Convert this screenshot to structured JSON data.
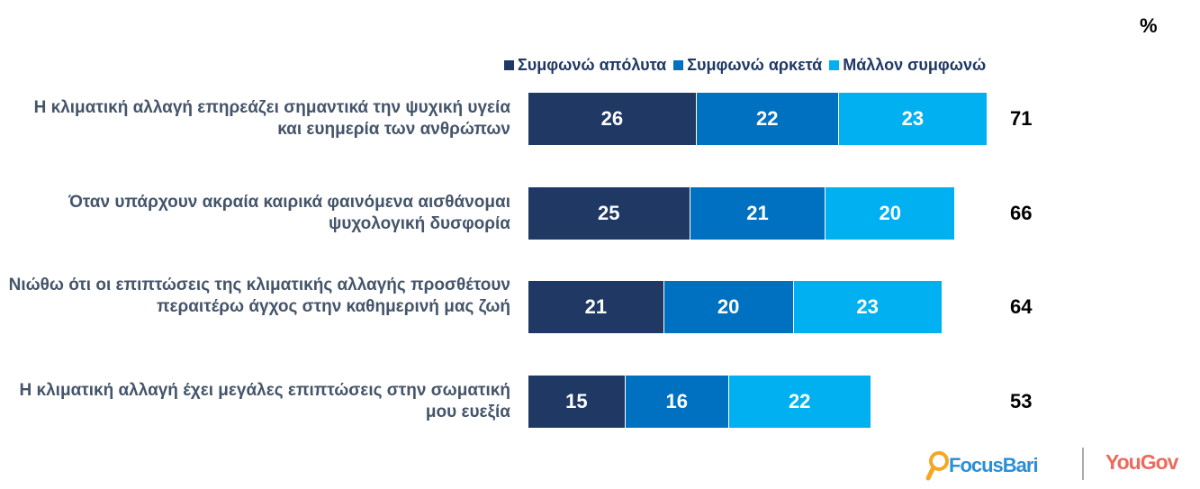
{
  "chart_data": {
    "type": "bar",
    "orientation": "horizontal",
    "stacked": true,
    "unit_label": "%",
    "categories": [
      "Η κλιματική αλλαγή επηρεάζει σημαντικά την ψυχική υγεία και ευημερία των ανθρώπων",
      "Όταν υπάρχουν ακραία καιρικά φαινόμενα αισθάνομαι ψυχολογική δυσφορία",
      "Νιώθω ότι οι επιπτώσεις της κλιματικής αλλαγής προσθέτουν περαιτέρω άγχος στην καθημερινή μας ζωή",
      "Η κλιματική αλλαγή έχει μεγάλες επιπτώσεις στην σωματική μου ευεξία"
    ],
    "series": [
      {
        "name": "Συμφωνώ απόλυτα",
        "color": "#1f3864",
        "values": [
          26,
          25,
          21,
          15
        ]
      },
      {
        "name": "Συμφωνώ αρκετά",
        "color": "#0070c0",
        "values": [
          22,
          21,
          20,
          16
        ]
      },
      {
        "name": "Μάλλον συμφωνώ",
        "color": "#00b0f0",
        "values": [
          23,
          20,
          23,
          22
        ]
      }
    ],
    "totals": [
      71,
      66,
      64,
      53
    ],
    "legend_position": "top",
    "grid": false
  },
  "logos": {
    "left": "FocusBari",
    "right": "YouGov"
  }
}
